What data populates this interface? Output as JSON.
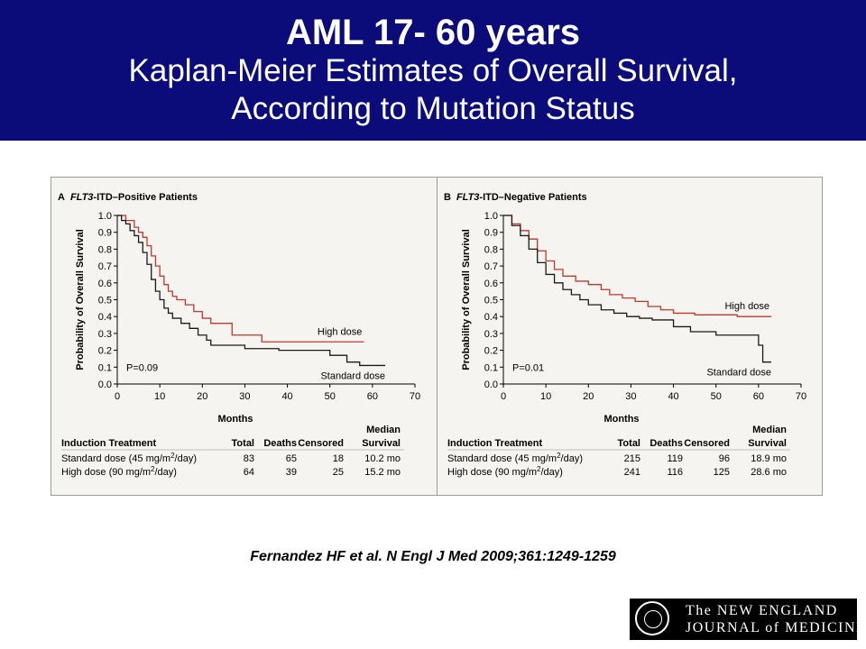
{
  "header": {
    "title": "AML 17- 60 years",
    "subtitle_line1": "Kaplan-Meier Estimates of Overall Survival,",
    "subtitle_line2": "According to Mutation Status"
  },
  "citation": "Fernandez HF et al. N Engl J Med 2009;361:1249-1259",
  "logo": {
    "line1": "The NEW ENGLAND",
    "line2": "JOURNAL of MEDICINE"
  },
  "colors": {
    "header_bg": "#0b0b7a",
    "high_dose": "#c0392b",
    "standard_dose": "#1a1a1a"
  },
  "chart_data": [
    {
      "type": "line",
      "step": true,
      "panel_letter": "A",
      "title_italic": "FLT3",
      "title_rest": "-ITD–Positive Patients",
      "xlabel": "Months",
      "ylabel": "Probability of Overall Survival",
      "xlim": [
        0,
        70
      ],
      "ylim": [
        0,
        1.0
      ],
      "xticks": [
        "0",
        "10",
        "20",
        "30",
        "40",
        "50",
        "60",
        "70"
      ],
      "yticks": [
        "0.0",
        "0.1",
        "0.2",
        "0.3",
        "0.4",
        "0.5",
        "0.6",
        "0.7",
        "0.8",
        "0.9",
        "1.0"
      ],
      "pvalue": "P=0.09",
      "series": [
        {
          "name": "High dose",
          "x": [
            0,
            2,
            4,
            5,
            6,
            7,
            8,
            9,
            10,
            11,
            12,
            13,
            14,
            16,
            18,
            20,
            22,
            27,
            34,
            58
          ],
          "y": [
            1.0,
            0.97,
            0.93,
            0.9,
            0.87,
            0.82,
            0.76,
            0.7,
            0.64,
            0.59,
            0.55,
            0.52,
            0.5,
            0.47,
            0.43,
            0.39,
            0.36,
            0.29,
            0.25,
            0.25
          ]
        },
        {
          "name": "Standard dose",
          "x": [
            0,
            1,
            2,
            3,
            4,
            5,
            6,
            7,
            8,
            9,
            10,
            11,
            12,
            13,
            15,
            17,
            19,
            21,
            22,
            27,
            30,
            38,
            50,
            54,
            57,
            61,
            63
          ],
          "y": [
            1.0,
            0.97,
            0.95,
            0.91,
            0.88,
            0.84,
            0.78,
            0.71,
            0.62,
            0.55,
            0.5,
            0.45,
            0.42,
            0.39,
            0.36,
            0.33,
            0.29,
            0.26,
            0.23,
            0.23,
            0.21,
            0.2,
            0.17,
            0.13,
            0.11,
            0.11,
            0.11
          ]
        }
      ],
      "table": {
        "headers": [
          "Induction Treatment",
          "Total",
          "Deaths",
          "Censored",
          "Median Survival"
        ],
        "header_line1": [
          "",
          "",
          "",
          "",
          "Median"
        ],
        "header_line2": [
          "Induction Treatment",
          "Total",
          "Deaths",
          "Censored",
          "Survival"
        ],
        "rows": [
          {
            "label_pre": "Standard dose (45 mg/m",
            "label_sup": "2",
            "label_post": "/day)",
            "total": "83",
            "deaths": "65",
            "censored": "18",
            "median": "10.2 mo"
          },
          {
            "label_pre": "High dose (90 mg/m",
            "label_sup": "2",
            "label_post": "/day)",
            "total": "64",
            "deaths": "39",
            "censored": "25",
            "median": "15.2 mo"
          }
        ]
      }
    },
    {
      "type": "line",
      "step": true,
      "panel_letter": "B",
      "title_italic": "FLT3",
      "title_rest": "-ITD–Negative Patients",
      "xlabel": "Months",
      "ylabel": "Probability of Overall Survival",
      "xlim": [
        0,
        70
      ],
      "ylim": [
        0,
        1.0
      ],
      "xticks": [
        "0",
        "10",
        "20",
        "30",
        "40",
        "50",
        "60",
        "70"
      ],
      "yticks": [
        "0.0",
        "0.1",
        "0.2",
        "0.3",
        "0.4",
        "0.5",
        "0.6",
        "0.7",
        "0.8",
        "0.9",
        "1.0"
      ],
      "pvalue": "P=0.01",
      "series": [
        {
          "name": "High dose",
          "x": [
            0,
            2,
            4,
            6,
            8,
            10,
            12,
            14,
            17,
            20,
            23,
            25,
            28,
            31,
            34,
            37,
            40,
            45,
            50,
            55,
            60,
            63
          ],
          "y": [
            1.0,
            0.95,
            0.91,
            0.86,
            0.79,
            0.73,
            0.68,
            0.64,
            0.61,
            0.59,
            0.56,
            0.53,
            0.51,
            0.49,
            0.46,
            0.44,
            0.42,
            0.41,
            0.41,
            0.4,
            0.4,
            0.4
          ]
        },
        {
          "name": "Standard dose",
          "x": [
            0,
            2,
            4,
            6,
            8,
            10,
            12,
            14,
            16,
            18,
            20,
            23,
            26,
            29,
            32,
            35,
            40,
            44,
            50,
            52,
            59,
            60,
            61,
            63
          ],
          "y": [
            1.0,
            0.94,
            0.88,
            0.8,
            0.72,
            0.65,
            0.6,
            0.56,
            0.53,
            0.5,
            0.47,
            0.44,
            0.42,
            0.4,
            0.39,
            0.38,
            0.34,
            0.31,
            0.29,
            0.29,
            0.29,
            0.23,
            0.13,
            0.13
          ]
        }
      ],
      "table": {
        "headers": [
          "Induction Treatment",
          "Total",
          "Deaths",
          "Censored",
          "Median Survival"
        ],
        "header_line1": [
          "",
          "",
          "",
          "",
          "Median"
        ],
        "header_line2": [
          "Induction Treatment",
          "Total",
          "Deaths",
          "Censored",
          "Survival"
        ],
        "rows": [
          {
            "label_pre": "Standard dose (45 mg/m",
            "label_sup": "2",
            "label_post": "/day)",
            "total": "215",
            "deaths": "119",
            "censored": "96",
            "median": "18.9 mo"
          },
          {
            "label_pre": "High dose (90 mg/m",
            "label_sup": "2",
            "label_post": "/day)",
            "total": "241",
            "deaths": "116",
            "censored": "125",
            "median": "28.6 mo"
          }
        ]
      }
    }
  ]
}
